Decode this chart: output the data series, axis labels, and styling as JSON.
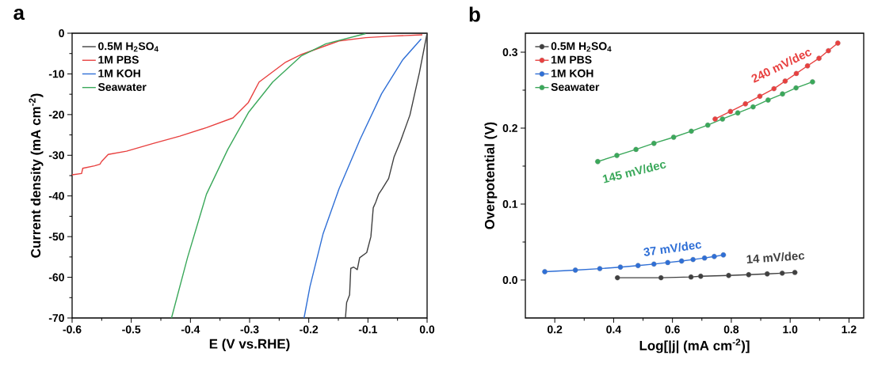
{
  "chart_data": [
    {
      "type": "line",
      "title": "a",
      "xlabel": "E (V vs.RHE)",
      "ylabel": "Current density (mA cm$^{-2}$)",
      "xlim": [
        -0.6,
        0.0
      ],
      "ylim": [
        -70,
        0
      ],
      "xticks": [
        -0.6,
        -0.5,
        -0.4,
        -0.3,
        -0.2,
        -0.1,
        {
          "value": 0,
          "label": "0.0"
        }
      ],
      "yticks": [
        -70,
        -60,
        -50,
        -40,
        -30,
        -20,
        -10,
        0
      ],
      "legend": "top left",
      "marker": "none",
      "line_style": "solid",
      "series": [
        {
          "name": "0.5M H$_{2}$SO$_{4}$",
          "color": "#404040",
          "x": [
            -0.138,
            -0.136,
            -0.131,
            -0.129,
            -0.124,
            -0.118,
            -0.114,
            -0.102,
            -0.095,
            -0.091,
            -0.087,
            -0.082,
            -0.076,
            -0.065,
            -0.056,
            -0.045,
            -0.029,
            -0.013,
            0.0
          ],
          "values": [
            -70,
            -66.2,
            -64.3,
            -57.8,
            -57.5,
            -58.1,
            -55.2,
            -53.9,
            -50.0,
            -42.9,
            -41.6,
            -39.6,
            -38.3,
            -35.7,
            -30.5,
            -26.6,
            -20.1,
            -9.7,
            0
          ]
        },
        {
          "name": "1M PBS",
          "color": "#e8403f",
          "x": [
            -0.6,
            -0.584,
            -0.582,
            -0.562,
            -0.553,
            -0.55,
            -0.539,
            -0.508,
            -0.463,
            -0.418,
            -0.373,
            -0.328,
            -0.302,
            -0.284,
            -0.239,
            -0.212,
            -0.149,
            -0.104,
            -0.059,
            -0.008
          ],
          "values": [
            -34.8,
            -34.5,
            -33.2,
            -32.6,
            -32.2,
            -31.5,
            -29.8,
            -29.0,
            -27.1,
            -25.3,
            -23.2,
            -20.8,
            -17.0,
            -12.0,
            -7.1,
            -5.2,
            -1.9,
            -1.1,
            -0.7,
            -0.4
          ]
        },
        {
          "name": "1M KOH",
          "color": "#2f6fd6",
          "x": [
            -0.208,
            -0.198,
            -0.176,
            -0.149,
            -0.113,
            -0.077,
            -0.041,
            -0.01
          ],
          "values": [
            -70,
            -62.3,
            -49.4,
            -38.3,
            -26.0,
            -14.9,
            -6.5,
            -1.4
          ]
        },
        {
          "name": "Seawater",
          "color": "#3aa85a",
          "x": [
            -0.432,
            -0.405,
            -0.373,
            -0.337,
            -0.302,
            -0.261,
            -0.212,
            -0.171,
            -0.104
          ],
          "values": [
            -70,
            -55.2,
            -39.6,
            -28.6,
            -19.5,
            -12.0,
            -5.5,
            -2.6,
            -0.1
          ]
        }
      ]
    },
    {
      "type": "line",
      "title": "b",
      "xlabel": "Log[|j| (mA cm$^{-2}$)]",
      "ylabel": "Overpotential (V)",
      "xlim": [
        0.1,
        1.25
      ],
      "ylim": [
        -0.05,
        0.325
      ],
      "xticks": [
        0.2,
        0.4,
        0.6,
        0.8,
        {
          "value": 1.0,
          "label": "1.0"
        },
        1.2
      ],
      "yticks": [
        {
          "value": 0,
          "label": "0.0"
        },
        0.1,
        0.2,
        0.3
      ],
      "legend": "top left",
      "marker": "circle",
      "line_style": "solid",
      "annotations": [
        "240 mV/dec",
        "145 mV/dec",
        "37 mV/dec",
        "14 mV/dec"
      ],
      "series": [
        {
          "name": "0.5M H$_{2}$SO$_{4}$",
          "color": "#404040",
          "x": [
            0.413,
            0.561,
            0.663,
            0.696,
            0.791,
            0.859,
            0.922,
            0.973,
            1.016
          ],
          "values": [
            0.003,
            0.003,
            0.004,
            0.005,
            0.006,
            0.007,
            0.008,
            0.009,
            0.01
          ]
        },
        {
          "name": "1M PBS",
          "color": "#e8403f",
          "x": [
            0.745,
            0.797,
            0.848,
            0.897,
            0.945,
            0.983,
            1.021,
            1.059,
            1.098,
            1.13,
            1.162
          ],
          "values": [
            0.212,
            0.222,
            0.232,
            0.242,
            0.252,
            0.262,
            0.272,
            0.282,
            0.292,
            0.302,
            0.312
          ]
        },
        {
          "name": "1M KOH",
          "color": "#2f6fd6",
          "x": [
            0.166,
            0.27,
            0.353,
            0.423,
            0.483,
            0.537,
            0.584,
            0.631,
            0.67,
            0.709,
            0.742,
            0.773
          ],
          "values": [
            0.011,
            0.013,
            0.015,
            0.017,
            0.019,
            0.021,
            0.023,
            0.025,
            0.027,
            0.029,
            0.031,
            0.033
          ]
        },
        {
          "name": "Seawater",
          "color": "#3aa85a",
          "x": [
            0.346,
            0.411,
            0.476,
            0.537,
            0.604,
            0.664,
            0.72,
            0.77,
            0.822,
            0.874,
            0.925,
            0.974,
            1.02,
            1.076
          ],
          "values": [
            0.156,
            0.164,
            0.172,
            0.18,
            0.188,
            0.196,
            0.204,
            0.212,
            0.22,
            0.228,
            0.237,
            0.245,
            0.253,
            0.261
          ]
        }
      ]
    }
  ]
}
